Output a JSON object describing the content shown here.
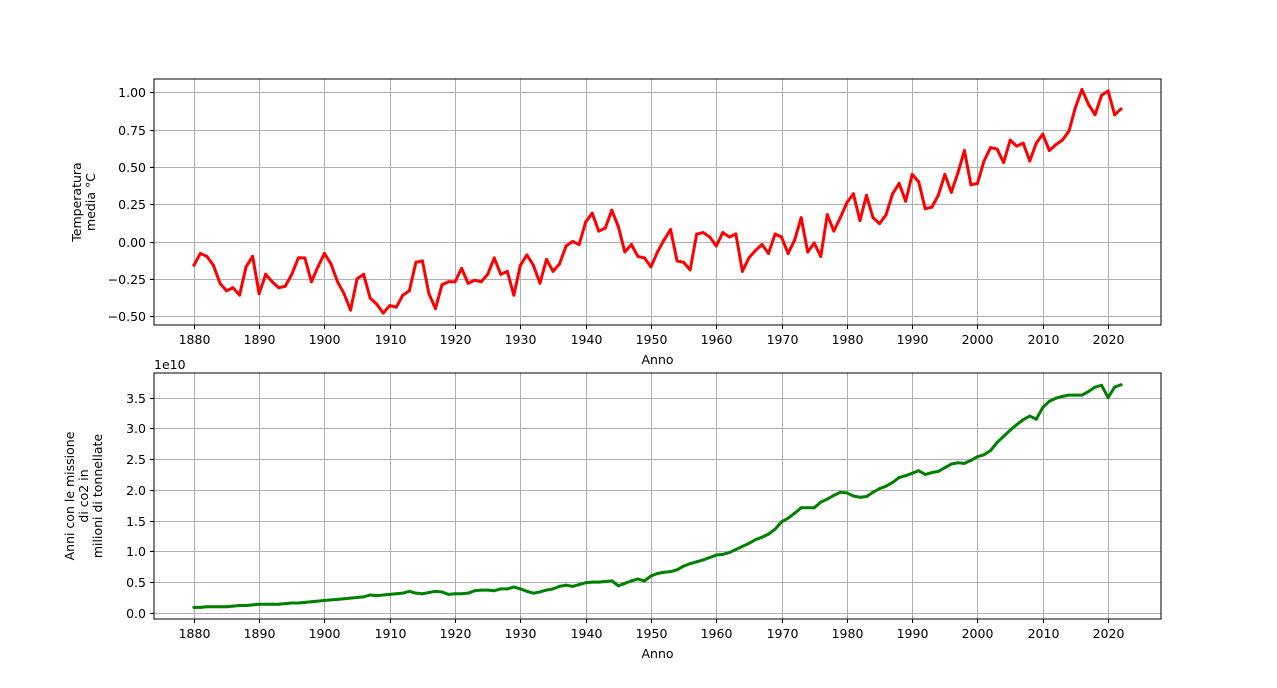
{
  "chart_data": [
    {
      "type": "line",
      "title": "",
      "xlabel": "Anno",
      "ylabel": [
        "Temperatura",
        "media °C"
      ],
      "xlim": [
        1873.9,
        2028.1
      ],
      "ylim": [
        -0.56,
        1.09
      ],
      "xticks": [
        1880,
        1890,
        1900,
        1910,
        1920,
        1930,
        1940,
        1950,
        1960,
        1970,
        1980,
        1990,
        2000,
        2010,
        2020
      ],
      "yticks": [
        -0.5,
        -0.25,
        0.0,
        0.25,
        0.5,
        0.75,
        1.0
      ],
      "ytick_labels": [
        "−0.50",
        "−0.25",
        "0.00",
        "0.25",
        "0.50",
        "0.75",
        "1.00"
      ],
      "grid": true,
      "series": [
        {
          "color": "#ff0000",
          "x_start": 1880,
          "values": [
            -0.16,
            -0.08,
            -0.1,
            -0.16,
            -0.28,
            -0.33,
            -0.31,
            -0.36,
            -0.17,
            -0.1,
            -0.35,
            -0.22,
            -0.27,
            -0.31,
            -0.3,
            -0.22,
            -0.11,
            -0.11,
            -0.27,
            -0.17,
            -0.08,
            -0.15,
            -0.27,
            -0.35,
            -0.46,
            -0.25,
            -0.22,
            -0.38,
            -0.42,
            -0.48,
            -0.43,
            -0.44,
            -0.36,
            -0.33,
            -0.14,
            -0.13,
            -0.35,
            -0.45,
            -0.29,
            -0.27,
            -0.27,
            -0.18,
            -0.28,
            -0.26,
            -0.27,
            -0.22,
            -0.11,
            -0.22,
            -0.2,
            -0.36,
            -0.16,
            -0.09,
            -0.16,
            -0.28,
            -0.12,
            -0.2,
            -0.15,
            -0.03,
            0.0,
            -0.02,
            0.13,
            0.19,
            0.07,
            0.09,
            0.21,
            0.1,
            -0.07,
            -0.02,
            -0.1,
            -0.11,
            -0.17,
            -0.07,
            0.01,
            0.08,
            -0.13,
            -0.14,
            -0.19,
            0.05,
            0.06,
            0.03,
            -0.03,
            0.06,
            0.03,
            0.05,
            -0.2,
            -0.11,
            -0.06,
            -0.02,
            -0.08,
            0.05,
            0.03,
            -0.08,
            0.01,
            0.16,
            -0.07,
            -0.01,
            -0.1,
            0.18,
            0.07,
            0.16,
            0.26,
            0.32,
            0.14,
            0.31,
            0.16,
            0.12,
            0.18,
            0.32,
            0.39,
            0.27,
            0.45,
            0.4,
            0.22,
            0.23,
            0.31,
            0.45,
            0.33,
            0.46,
            0.61,
            0.38,
            0.39,
            0.54,
            0.63,
            0.62,
            0.53,
            0.68,
            0.64,
            0.66,
            0.54,
            0.66,
            0.72,
            0.61,
            0.65,
            0.68,
            0.74,
            0.9,
            1.02,
            0.92,
            0.85,
            0.98,
            1.01,
            0.85,
            0.89
          ]
        }
      ]
    },
    {
      "type": "line",
      "title": "",
      "xlabel": "Anno",
      "ylabel": [
        "Anni con le missione",
        "di co2 in",
        "milioni di tonnellate"
      ],
      "offset_label": "1e10",
      "xlim": [
        1873.9,
        2028.1
      ],
      "ylim": [
        -0.1,
        3.9
      ],
      "xticks": [
        1880,
        1890,
        1900,
        1910,
        1920,
        1930,
        1940,
        1950,
        1960,
        1970,
        1980,
        1990,
        2000,
        2010,
        2020
      ],
      "yticks": [
        0.0,
        0.5,
        1.0,
        1.5,
        2.0,
        2.5,
        3.0,
        3.5
      ],
      "ytick_labels": [
        "0.0",
        "0.5",
        "1.0",
        "1.5",
        "2.0",
        "2.5",
        "3.0",
        "3.5"
      ],
      "grid": true,
      "y_unit_multiplier": "1e10",
      "series": [
        {
          "color": "#008000",
          "x_start": 1880,
          "values": [
            0.09,
            0.09,
            0.1,
            0.1,
            0.1,
            0.1,
            0.11,
            0.12,
            0.12,
            0.13,
            0.14,
            0.14,
            0.14,
            0.14,
            0.15,
            0.16,
            0.16,
            0.17,
            0.18,
            0.19,
            0.2,
            0.21,
            0.22,
            0.23,
            0.24,
            0.25,
            0.26,
            0.29,
            0.28,
            0.29,
            0.3,
            0.31,
            0.32,
            0.35,
            0.32,
            0.31,
            0.33,
            0.35,
            0.34,
            0.3,
            0.31,
            0.31,
            0.32,
            0.36,
            0.37,
            0.37,
            0.36,
            0.39,
            0.39,
            0.42,
            0.39,
            0.35,
            0.32,
            0.34,
            0.37,
            0.39,
            0.43,
            0.45,
            0.43,
            0.46,
            0.49,
            0.5,
            0.5,
            0.51,
            0.52,
            0.44,
            0.48,
            0.52,
            0.55,
            0.52,
            0.6,
            0.64,
            0.66,
            0.67,
            0.7,
            0.76,
            0.8,
            0.83,
            0.86,
            0.9,
            0.94,
            0.95,
            0.98,
            1.03,
            1.08,
            1.13,
            1.19,
            1.23,
            1.28,
            1.36,
            1.48,
            1.54,
            1.62,
            1.71,
            1.71,
            1.71,
            1.8,
            1.85,
            1.91,
            1.96,
            1.95,
            1.9,
            1.88,
            1.89,
            1.96,
            2.02,
            2.06,
            2.12,
            2.2,
            2.23,
            2.27,
            2.31,
            2.25,
            2.28,
            2.3,
            2.36,
            2.42,
            2.44,
            2.43,
            2.48,
            2.54,
            2.57,
            2.64,
            2.77,
            2.87,
            2.97,
            3.06,
            3.14,
            3.2,
            3.15,
            3.34,
            3.44,
            3.49,
            3.52,
            3.54,
            3.54,
            3.54,
            3.6,
            3.67,
            3.7,
            3.5,
            3.67,
            3.71
          ]
        }
      ]
    }
  ]
}
